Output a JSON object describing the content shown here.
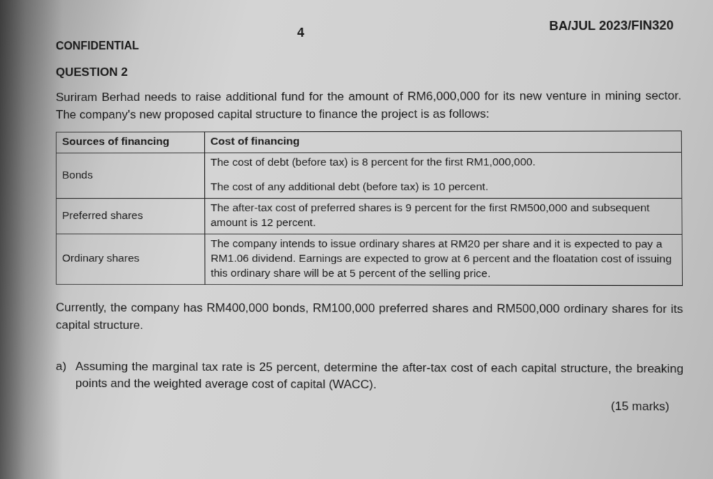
{
  "header": {
    "confidential": "CONFIDENTIAL",
    "page_number": "4",
    "course_code": "BA/JUL 2023/FIN320"
  },
  "question": {
    "title": "QUESTION 2",
    "intro": "Suriram Berhad needs to raise additional fund for the amount of RM6,000,000 for its new venture in mining sector. The company's new proposed capital structure to finance the project is as follows:"
  },
  "table": {
    "col1": "Sources of financing",
    "col2": "Cost of financing",
    "rows": [
      {
        "source": "Bonds",
        "cost_line1": "The cost of debt (before tax) is 8 percent for the first RM1,000,000.",
        "cost_line2": "The cost of any additional debt (before tax) is 10 percent."
      },
      {
        "source": "Preferred shares",
        "cost": "The after-tax cost of preferred shares is 9 percent for the first RM500,000 and subsequent amount is 12 percent."
      },
      {
        "source": "Ordinary shares",
        "cost": "The company intends to issue ordinary shares at RM20 per share and it is expected to pay a RM1.06 dividend. Earnings are expected to grow at 6 percent and the floatation cost of issuing this ordinary share will be at 5 percent of the selling price."
      }
    ]
  },
  "current_structure": "Currently, the company has RM400,000 bonds, RM100,000 preferred shares and RM500,000 ordinary shares for its capital structure.",
  "part_a": {
    "label": "a)",
    "text": "Assuming the marginal tax rate is 25 percent, determine the after-tax cost of each capital structure, the breaking points and the weighted average cost of capital (WACC).",
    "marks": "(15 marks)"
  }
}
